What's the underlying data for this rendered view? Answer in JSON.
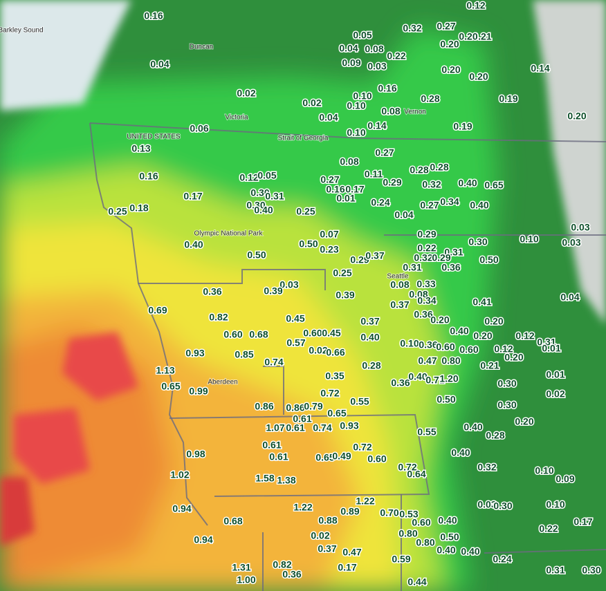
{
  "map": {
    "place_names": [
      "Barkley Sound",
      "Duncan",
      "Victoria",
      "UNITED STATES",
      "Strait of Georgia",
      "Aberdeen",
      "Vernon",
      "Olympic National Park",
      "Seattle"
    ],
    "precip_labels": [
      "0.16",
      "0.04",
      "0.02",
      "0.06",
      "0.13",
      "0.16",
      "0.17",
      "0.25",
      "0.18",
      "0.12",
      "0.05",
      "0.30",
      "0.31",
      "0.30",
      "0.40",
      "0.25",
      "0.40",
      "0.50",
      "0.50",
      "0.07",
      "0.23",
      "0.05",
      "0.04",
      "0.08",
      "0.22",
      "0.09",
      "0.03",
      "0.02",
      "0.04",
      "0.10",
      "0.10",
      "0.16",
      "0.08",
      "0.14",
      "0.10",
      "0.27",
      "0.08",
      "0.11",
      "0.27",
      "0.16",
      "0.17",
      "0.01",
      "0.29",
      "0.24",
      "0.04",
      "0.32",
      "0.27",
      "0.21",
      "0.20",
      "0.20",
      "0.12",
      "0.20",
      "0.20",
      "0.14",
      "0.28",
      "0.19",
      "0.19",
      "0.20",
      "0.28",
      "0.28",
      "0.32",
      "0.40",
      "0.65",
      "0.27",
      "0.34",
      "0.40",
      "0.29",
      "0.22",
      "0.32",
      "0.31",
      "0.29",
      "0.30",
      "0.50",
      "0.36",
      "0.10",
      "0.03",
      "0.03",
      "0.31",
      "0.29",
      "0.37",
      "0.25",
      "0.03",
      "0.39",
      "0.39",
      "0.08",
      "0.33",
      "0.37",
      "0.08",
      "0.34",
      "0.36",
      "0.20",
      "0.41",
      "0.20",
      "0.04",
      "0.36",
      "0.69",
      "0.82",
      "0.45",
      "0.37",
      "0.60",
      "0.68",
      "0.60",
      "0.45",
      "0.57",
      "0.40",
      "0.40",
      "0.20",
      "0.12",
      "0.31",
      "0.10",
      "0.36",
      "0.60",
      "0.60",
      "0.12",
      "0.20",
      "0.01",
      "0.93",
      "0.85",
      "0.02",
      "0.66",
      "0.74",
      "0.28",
      "0.47",
      "0.80",
      "0.21",
      "1.13",
      "0.65",
      "0.99",
      "0.35",
      "0.36",
      "0.40",
      "0.71",
      "1.20",
      "0.30",
      "0.01",
      "0.02",
      "0.72",
      "0.86",
      "0.86",
      "0.79",
      "0.65",
      "0.55",
      "0.50",
      "0.30",
      "0.20",
      "1.07",
      "0.61",
      "0.61",
      "0.74",
      "0.93",
      "0.55",
      "0.40",
      "0.28",
      "0.98",
      "0.61",
      "0.61",
      "0.65",
      "0.49",
      "0.72",
      "0.60",
      "0.72",
      "0.64",
      "0.40",
      "0.32",
      "1.02",
      "1.58",
      "1.38",
      "0.10",
      "0.09",
      "0.94",
      "0.68",
      "1.22",
      "0.88",
      "0.89",
      "1.22",
      "0.70",
      "0.53",
      "0.60",
      "0.40",
      "0.03",
      "0.30",
      "0.10",
      "0.17",
      "0.22",
      "0.94",
      "0.02",
      "0.37",
      "0.80",
      "0.80",
      "0.50",
      "0.40",
      "0.40",
      "0.47",
      "0.17",
      "0.59",
      "0.24",
      "1.31",
      "0.82",
      "0.36",
      "1.00",
      "0.44",
      "0.31",
      "0.30"
    ]
  }
}
